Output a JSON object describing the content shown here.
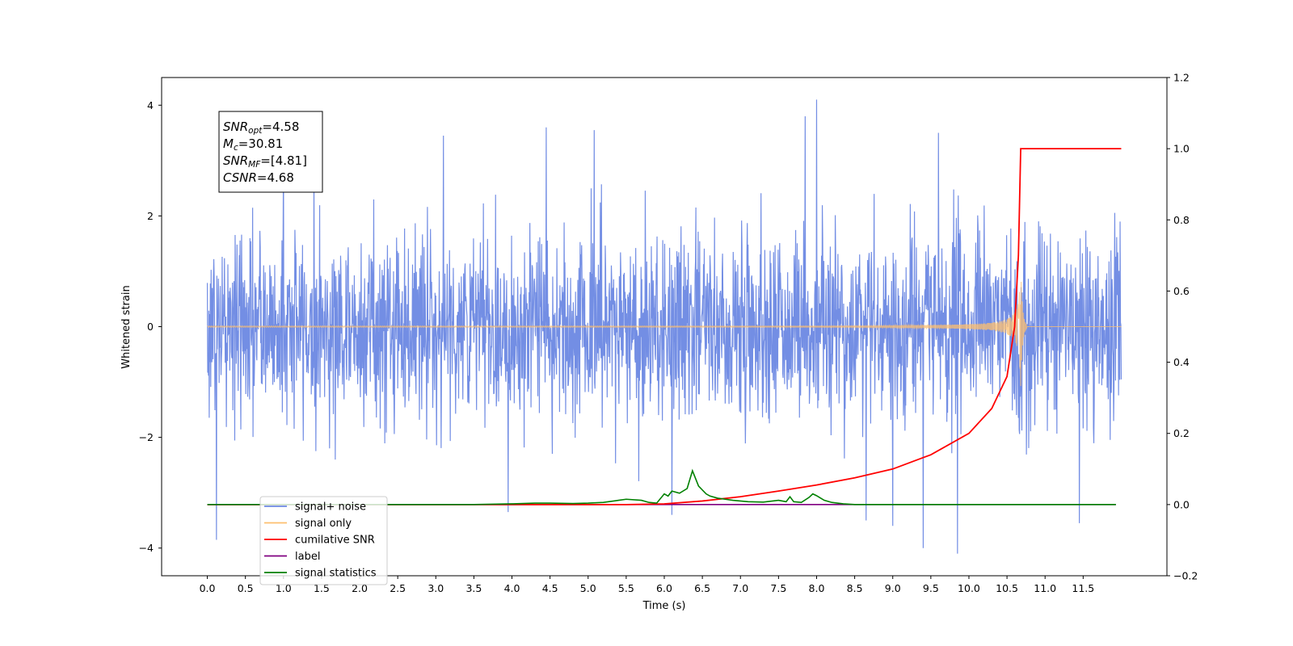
{
  "chart_data": {
    "type": "line",
    "xlabel": "Time (s)",
    "ylabel": "Whitened strain",
    "xlim": [
      -0.6,
      12.6
    ],
    "ylim": [
      -4.5,
      4.5
    ],
    "y2lim": [
      -0.2,
      1.2
    ],
    "x_ticks": [
      0.0,
      0.5,
      1.0,
      1.5,
      2.0,
      2.5,
      3.0,
      3.5,
      4.0,
      4.5,
      5.0,
      5.5,
      6.0,
      6.5,
      7.0,
      7.5,
      8.0,
      8.5,
      9.0,
      9.5,
      10.0,
      10.5,
      11.0,
      11.5
    ],
    "x_tick_labels": [
      "0.0",
      "0.5",
      "1.0",
      "1.5",
      "2.0",
      "2.5",
      "3.0",
      "3.5",
      "4.0",
      "4.5",
      "5.0",
      "5.5",
      "6.0",
      "6.5",
      "7.0",
      "7.5",
      "8.0",
      "8.5",
      "9.0",
      "9.5",
      "10.0",
      "10.5",
      "11.0",
      "11.5"
    ],
    "y_ticks": [
      -4,
      -2,
      0,
      2,
      4
    ],
    "y_tick_labels": [
      "−4",
      "−2",
      "0",
      "2",
      "4"
    ],
    "y2_ticks": [
      -0.2,
      0.0,
      0.2,
      0.4,
      0.6,
      0.8,
      1.0,
      1.2
    ],
    "y2_tick_labels": [
      "−0.2",
      "0.0",
      "0.2",
      "0.4",
      "0.6",
      "0.8",
      "1.0",
      "1.2"
    ],
    "grid": false,
    "legend": {
      "placement": "lower-left",
      "entries": [
        {
          "label": "signal+ noise",
          "color": "#6b88e3"
        },
        {
          "label": "signal only",
          "color": "#fdbf6f"
        },
        {
          "label": "cumilative SNR",
          "color": "#ff0000"
        },
        {
          "label": "label",
          "color": "#800080"
        },
        {
          "label": "signal statistics",
          "color": "#008000"
        }
      ]
    },
    "annotation": {
      "lines": [
        {
          "base": "SNR",
          "sub": "opt",
          "rest": "=4.58"
        },
        {
          "base": "M",
          "sub": "c",
          "rest": "=30.81"
        },
        {
          "base": "SNR",
          "sub": "MF",
          "rest": "=[4.81]"
        },
        {
          "base": "CSNR",
          "sub": "",
          "rest": "=4.68"
        }
      ]
    },
    "series": [
      {
        "name": "signal+ noise",
        "axis": "left",
        "color": "#6b88e3",
        "kind": "noise",
        "x_range": [
          0.0,
          12.0
        ],
        "typical_amplitude": 1.6,
        "peak_max": 4.1,
        "peak_min": -4.1
      },
      {
        "name": "signal only",
        "axis": "left",
        "color": "#fdbf6f",
        "kind": "chirp",
        "x_range": [
          0.0,
          12.0
        ],
        "merger_time": 10.68,
        "peak_amplitude": 1.1
      },
      {
        "name": "cumilative SNR",
        "axis": "right",
        "color": "#ff0000",
        "x": [
          0.0,
          5.5,
          6.0,
          6.5,
          7.0,
          7.5,
          8.0,
          8.5,
          9.0,
          9.5,
          10.0,
          10.3,
          10.5,
          10.6,
          10.65,
          10.68,
          10.7,
          11.0,
          11.5,
          12.0
        ],
        "y": [
          0.0,
          0.0,
          0.002,
          0.01,
          0.022,
          0.038,
          0.055,
          0.075,
          0.1,
          0.14,
          0.2,
          0.27,
          0.36,
          0.5,
          0.7,
          1.0,
          1.0,
          1.0,
          1.0,
          1.0
        ]
      },
      {
        "name": "label",
        "axis": "right",
        "color": "#800080",
        "x": [
          0.0,
          11.93
        ],
        "y": [
          0.0,
          0.0
        ]
      },
      {
        "name": "signal statistics",
        "axis": "right",
        "color": "#008000",
        "x": [
          0.0,
          3.5,
          4.0,
          4.3,
          4.5,
          4.8,
          5.0,
          5.2,
          5.4,
          5.5,
          5.7,
          5.8,
          5.9,
          6.0,
          6.05,
          6.1,
          6.2,
          6.3,
          6.37,
          6.45,
          6.55,
          6.6,
          6.7,
          6.8,
          6.9,
          7.1,
          7.3,
          7.5,
          7.6,
          7.65,
          7.7,
          7.8,
          7.9,
          7.95,
          8.0,
          8.1,
          8.2,
          8.35,
          8.5,
          9.0,
          10.5,
          11.0,
          11.93
        ],
        "y": [
          0.0,
          0.0,
          0.002,
          0.004,
          0.004,
          0.003,
          0.004,
          0.006,
          0.012,
          0.015,
          0.012,
          0.006,
          0.004,
          0.03,
          0.024,
          0.038,
          0.032,
          0.045,
          0.095,
          0.052,
          0.03,
          0.024,
          0.018,
          0.015,
          0.012,
          0.008,
          0.007,
          0.012,
          0.008,
          0.022,
          0.008,
          0.006,
          0.02,
          0.03,
          0.025,
          0.012,
          0.006,
          0.002,
          0.0,
          0.0,
          0.0,
          0.0,
          0.0
        ]
      }
    ]
  }
}
